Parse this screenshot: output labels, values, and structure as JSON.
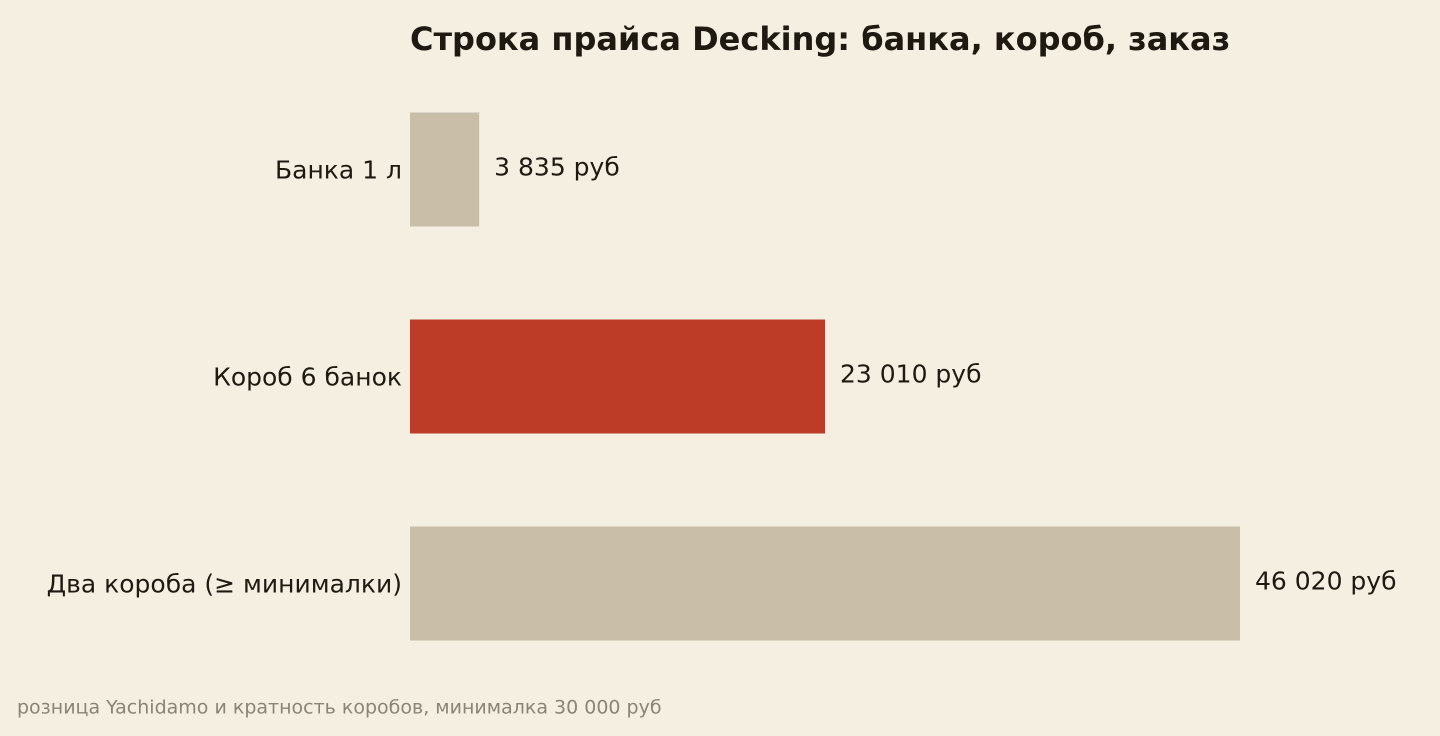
{
  "chart_data": {
    "type": "bar",
    "orientation": "horizontal",
    "title": "Строка прайса Decking: банка, короб, заказ",
    "categories": [
      "Банка 1 л",
      "Короб 6 банок",
      "Два короба (≥ минималки)"
    ],
    "values": [
      3835,
      23010,
      46020
    ],
    "value_labels": [
      "3 835 руб",
      "23 010 руб",
      "46 020 руб"
    ],
    "colors": [
      "#c9bfa8",
      "#bc3c27",
      "#c9bfa8"
    ],
    "caption": "розница Yachidamo и кратность коробов, минималка 30 000 руб"
  }
}
